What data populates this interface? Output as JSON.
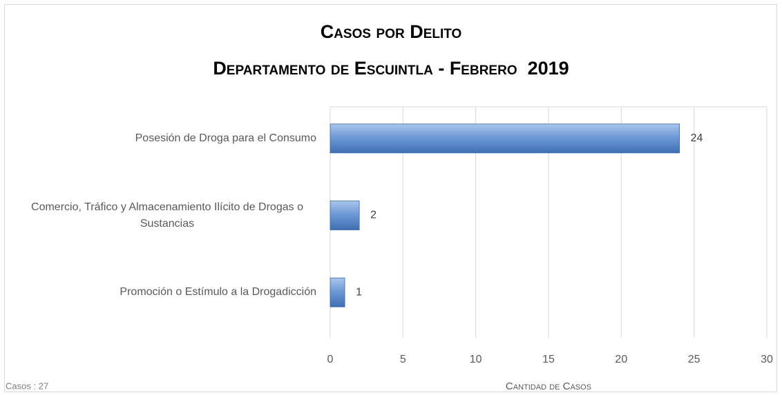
{
  "chart_data": {
    "type": "barh",
    "title": "Casos por Delito",
    "subtitle": "Departamento de Escuintla - Febrero  2019",
    "categories": [
      "Posesión de Droga para el Consumo",
      "Comercio, Tráfico y Almacenamiento Ilícito de Drogas o Sustancias",
      "Promoción o Estímulo a la Drogadicción"
    ],
    "values": [
      24,
      2,
      1
    ],
    "color": "#4f81bd",
    "xlim": [
      0,
      30
    ],
    "xticks": [
      0,
      5,
      10,
      15,
      20,
      25,
      30
    ],
    "grid": true,
    "xlabel": "Cantidad de Casos",
    "annotation": "Casos : 27"
  }
}
